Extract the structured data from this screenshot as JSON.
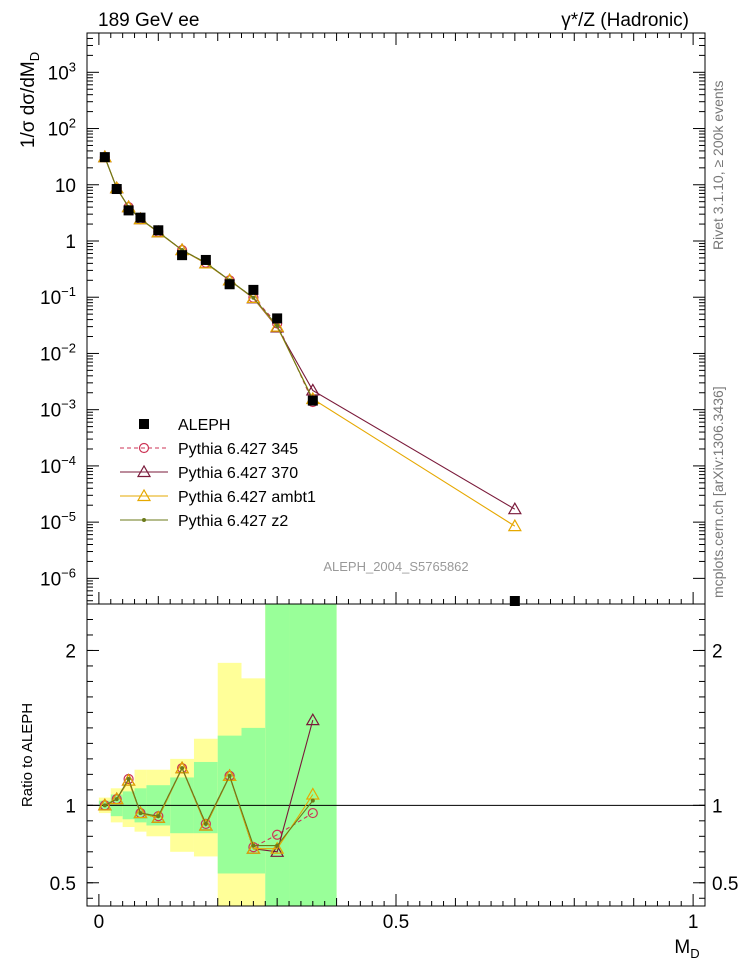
{
  "header": {
    "left": "189 GeV ee",
    "right": "γ*/Z (Hadronic)"
  },
  "side_labels": {
    "rivet": "Rivet 3.1.10, ≥ 200k events",
    "mcplots": "mcplots.cern.ch [arXiv:1306.3436]"
  },
  "chart_data": [
    {
      "type": "scatter",
      "panel": "main",
      "ylabel": "1/σ dσ/dM_D",
      "yscale": "log",
      "ylim": [
        3.5e-07,
        5000
      ],
      "xlim": [
        -0.02,
        1.02
      ],
      "yticks": [
        {
          "v": 1e-06,
          "b": "10",
          "e": "−6"
        },
        {
          "v": 1e-05,
          "b": "10",
          "e": "−5"
        },
        {
          "v": 0.0001,
          "b": "10",
          "e": "−4"
        },
        {
          "v": 0.001,
          "b": "10",
          "e": "−3"
        },
        {
          "v": 0.01,
          "b": "10",
          "e": "−2"
        },
        {
          "v": 0.1,
          "b": "10",
          "e": "−1"
        },
        {
          "v": 1,
          "b": "1",
          "e": ""
        },
        {
          "v": 10,
          "b": "10",
          "e": ""
        },
        {
          "v": 100,
          "b": "10",
          "e": "2"
        },
        {
          "v": 1000,
          "b": "10",
          "e": "3"
        }
      ],
      "watermark": "ALEPH_2004_S5765862",
      "legend_position": "lower-left",
      "series": [
        {
          "name": "ALEPH",
          "color": "#000000",
          "marker": "square",
          "line": "none",
          "x": [
            0.01,
            0.03,
            0.05,
            0.07,
            0.1,
            0.14,
            0.18,
            0.22,
            0.26,
            0.3,
            0.36,
            0.7
          ],
          "y": [
            31,
            8.4,
            3.5,
            2.6,
            1.55,
            0.56,
            0.46,
            0.17,
            0.135,
            0.042,
            0.00145,
            3.5e-07
          ]
        },
        {
          "name": "Pythia 6.427 345",
          "color": "#cc3355",
          "marker": "circle",
          "line": "dashed",
          "x": [
            0.01,
            0.03,
            0.05,
            0.07,
            0.1,
            0.14,
            0.18,
            0.22,
            0.26,
            0.3,
            0.36
          ],
          "y": [
            31,
            8.7,
            4.0,
            2.45,
            1.45,
            0.69,
            0.41,
            0.2,
            0.098,
            0.034,
            0.00137
          ]
        },
        {
          "name": "Pythia 6.427 370",
          "color": "#7a1a3a",
          "marker": "triangle",
          "line": "solid",
          "x": [
            0.01,
            0.03,
            0.05,
            0.07,
            0.1,
            0.14,
            0.18,
            0.22,
            0.26,
            0.3,
            0.36,
            0.7
          ],
          "y": [
            31,
            8.7,
            4.0,
            2.45,
            1.43,
            0.69,
            0.4,
            0.2,
            0.096,
            0.029,
            0.0022,
            1.7e-05
          ]
        },
        {
          "name": "Pythia 6.427 ambt1",
          "color": "#e6a800",
          "marker": "triangle",
          "line": "solid",
          "x": [
            0.01,
            0.03,
            0.05,
            0.07,
            0.1,
            0.14,
            0.18,
            0.22,
            0.26,
            0.3,
            0.36,
            0.7
          ],
          "y": [
            31,
            8.7,
            4.0,
            2.45,
            1.43,
            0.69,
            0.4,
            0.2,
            0.097,
            0.03,
            0.00155,
            8.5e-06
          ]
        },
        {
          "name": "Pythia 6.427 z2",
          "color": "#6b7a1a",
          "marker": "dot",
          "line": "solid",
          "x": [
            0.01,
            0.03,
            0.05,
            0.07,
            0.1,
            0.14,
            0.18,
            0.22,
            0.26,
            0.3,
            0.36
          ],
          "y": [
            31,
            8.7,
            4.0,
            2.45,
            1.45,
            0.69,
            0.41,
            0.2,
            0.098,
            0.031,
            0.0015
          ]
        }
      ]
    },
    {
      "type": "scatter",
      "panel": "ratio",
      "ylabel": "Ratio to ALEPH",
      "xlabel": "M_D",
      "ylim": [
        0.35,
        2.3
      ],
      "xlim": [
        -0.02,
        1.02
      ],
      "xticks": [
        {
          "v": 0,
          "label": "0"
        },
        {
          "v": 0.5,
          "label": "0.5"
        },
        {
          "v": 1,
          "label": "1"
        }
      ],
      "yticks": [
        {
          "v": 0.5,
          "label": "0.5"
        },
        {
          "v": 1,
          "label": "1"
        },
        {
          "v": 2,
          "label": "2"
        }
      ],
      "bands": [
        {
          "x0": 0.0,
          "x1": 0.02,
          "green": [
            0.97,
            1.03
          ],
          "yellow": [
            0.95,
            1.05
          ]
        },
        {
          "x0": 0.02,
          "x1": 0.04,
          "green": [
            0.93,
            1.07
          ],
          "yellow": [
            0.89,
            1.11
          ]
        },
        {
          "x0": 0.04,
          "x1": 0.06,
          "green": [
            0.91,
            1.09
          ],
          "yellow": [
            0.86,
            1.14
          ]
        },
        {
          "x0": 0.06,
          "x1": 0.08,
          "green": [
            0.89,
            1.11
          ],
          "yellow": [
            0.83,
            1.23
          ]
        },
        {
          "x0": 0.08,
          "x1": 0.12,
          "green": [
            0.87,
            1.13
          ],
          "yellow": [
            0.8,
            1.23
          ]
        },
        {
          "x0": 0.12,
          "x1": 0.16,
          "green": [
            0.82,
            1.18
          ],
          "yellow": [
            0.7,
            1.3
          ]
        },
        {
          "x0": 0.16,
          "x1": 0.2,
          "green": [
            0.82,
            1.28
          ],
          "yellow": [
            0.67,
            1.43
          ]
        },
        {
          "x0": 0.2,
          "x1": 0.24,
          "green": [
            0.56,
            1.45
          ],
          "yellow": [
            0.35,
            1.92
          ]
        },
        {
          "x0": 0.24,
          "x1": 0.28,
          "green": [
            0.56,
            1.5
          ],
          "yellow": [
            0.35,
            1.82
          ]
        },
        {
          "x0": 0.28,
          "x1": 0.32,
          "green": [
            0.35,
            2.3
          ],
          "yellow": [
            0.35,
            2.3
          ]
        },
        {
          "x0": 0.32,
          "x1": 0.4,
          "green": [
            0.35,
            2.3
          ],
          "yellow": [
            0.35,
            2.3
          ]
        }
      ],
      "series": [
        {
          "name": "Pythia 6.427 345",
          "color": "#cc3355",
          "marker": "circle",
          "line": "dashed",
          "x": [
            0.01,
            0.03,
            0.05,
            0.07,
            0.1,
            0.14,
            0.18,
            0.22,
            0.26,
            0.3,
            0.36
          ],
          "y": [
            1.0,
            1.04,
            1.17,
            0.95,
            0.93,
            1.24,
            0.88,
            1.19,
            0.73,
            0.81,
            0.95
          ]
        },
        {
          "name": "Pythia 6.427 370",
          "color": "#7a1a3a",
          "marker": "triangle",
          "line": "solid",
          "x": [
            0.01,
            0.03,
            0.05,
            0.07,
            0.1,
            0.14,
            0.18,
            0.22,
            0.26,
            0.3,
            0.36
          ],
          "y": [
            1.0,
            1.04,
            1.16,
            0.95,
            0.92,
            1.24,
            0.87,
            1.19,
            0.72,
            0.7,
            1.55
          ]
        },
        {
          "name": "Pythia 6.427 ambt1",
          "color": "#e6a800",
          "marker": "triangle",
          "line": "solid",
          "x": [
            0.01,
            0.03,
            0.05,
            0.07,
            0.1,
            0.14,
            0.18,
            0.22,
            0.26,
            0.3,
            0.36
          ],
          "y": [
            1.0,
            1.04,
            1.16,
            0.95,
            0.92,
            1.24,
            0.87,
            1.19,
            0.72,
            0.72,
            1.07
          ]
        },
        {
          "name": "Pythia 6.427 z2",
          "color": "#6b7a1a",
          "marker": "dot",
          "line": "solid",
          "x": [
            0.01,
            0.03,
            0.05,
            0.07,
            0.1,
            0.14,
            0.18,
            0.22,
            0.26,
            0.3,
            0.36
          ],
          "y": [
            1.0,
            1.04,
            1.17,
            0.95,
            0.93,
            1.24,
            0.88,
            1.19,
            0.74,
            0.74,
            1.03
          ]
        }
      ]
    }
  ]
}
